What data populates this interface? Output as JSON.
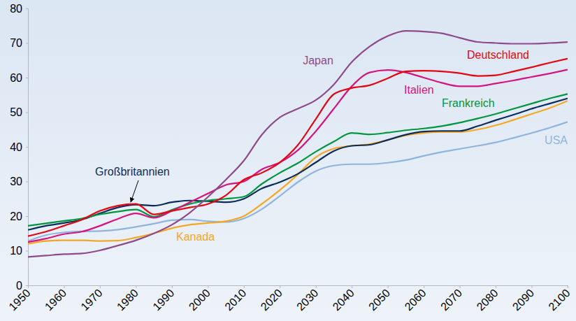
{
  "chart_data": {
    "type": "line",
    "x": [
      1950,
      1955,
      1960,
      1965,
      1970,
      1975,
      1980,
      1985,
      1990,
      1995,
      2000,
      2005,
      2010,
      2015,
      2020,
      2025,
      2030,
      2035,
      2040,
      2045,
      2050,
      2055,
      2060,
      2065,
      2070,
      2075,
      2080,
      2085,
      2090,
      2095,
      2100
    ],
    "xlim": [
      1950,
      2100
    ],
    "xticks": [
      1950,
      1960,
      1970,
      1980,
      1990,
      2000,
      2010,
      2020,
      2030,
      2040,
      2050,
      2060,
      2070,
      2080,
      2090,
      2100
    ],
    "ylim": [
      0,
      80
    ],
    "yticks": [
      0,
      10,
      20,
      30,
      40,
      50,
      60,
      70,
      80
    ],
    "grid": false,
    "series": [
      {
        "name": "Japan",
        "color": "#8e4a8a",
        "values": [
          8.2,
          8.6,
          9.0,
          9.2,
          10.1,
          11.5,
          13.0,
          15.0,
          17.5,
          21.0,
          25.5,
          30.5,
          36.0,
          43.5,
          48.5,
          51.0,
          53.5,
          58.0,
          64.5,
          69.0,
          72.0,
          73.5,
          73.3,
          72.8,
          71.5,
          70.3,
          70.0,
          69.8,
          69.8,
          70.0,
          70.3
        ]
      },
      {
        "name": "Deutschland",
        "color": "#e30613",
        "values": [
          14.2,
          15.5,
          17.2,
          19.0,
          21.5,
          23.0,
          23.5,
          20.5,
          21.5,
          22.5,
          23.5,
          26.0,
          30.5,
          32.5,
          35.5,
          40.5,
          48.0,
          55.2,
          57.0,
          57.8,
          59.8,
          61.8,
          62.0,
          61.8,
          61.3,
          60.5,
          60.7,
          61.8,
          63.0,
          64.3,
          65.5
        ]
      },
      {
        "name": "Italien",
        "color": "#d4147f",
        "values": [
          12.5,
          13.5,
          14.8,
          15.5,
          17.2,
          19.2,
          20.8,
          19.5,
          21.5,
          24.0,
          26.5,
          29.0,
          30.0,
          33.5,
          35.5,
          39.0,
          44.5,
          51.0,
          57.5,
          61.5,
          62.2,
          61.5,
          60.0,
          58.5,
          57.5,
          57.5,
          58.3,
          59.2,
          60.2,
          61.2,
          62.3
        ]
      },
      {
        "name": "Frankreich",
        "color": "#00963f",
        "values": [
          17.2,
          17.9,
          18.6,
          19.3,
          20.5,
          21.3,
          21.9,
          19.8,
          21.8,
          23.5,
          24.5,
          25.0,
          25.6,
          29.3,
          32.5,
          35.3,
          38.6,
          41.5,
          44.0,
          43.6,
          44.1,
          44.8,
          45.3,
          46.0,
          47.0,
          48.2,
          49.5,
          51.0,
          52.5,
          54.0,
          55.3
        ]
      },
      {
        "name": "Großbritannien",
        "color": "#0c2c5a",
        "values": [
          16.0,
          17.2,
          18.0,
          19.0,
          20.8,
          22.5,
          23.3,
          23.0,
          24.0,
          24.5,
          24.3,
          24.0,
          25.0,
          28.0,
          29.8,
          32.2,
          35.5,
          38.8,
          40.3,
          40.6,
          42.0,
          43.5,
          44.4,
          44.6,
          44.6,
          46.0,
          47.7,
          49.3,
          51.0,
          52.5,
          54.0
        ]
      },
      {
        "name": "Kanada",
        "color": "#f5a623",
        "values": [
          12.0,
          12.8,
          13.0,
          13.0,
          12.8,
          12.9,
          13.8,
          15.0,
          16.5,
          17.5,
          18.0,
          18.5,
          20.0,
          23.5,
          27.5,
          32.0,
          37.0,
          39.5,
          40.3,
          40.8,
          42.0,
          43.3,
          44.0,
          44.3,
          44.3,
          45.0,
          46.2,
          47.8,
          49.5,
          51.2,
          53.3
        ]
      },
      {
        "name": "USA",
        "color": "#8fb4de",
        "values": [
          12.8,
          14.5,
          15.3,
          15.6,
          15.7,
          16.1,
          16.9,
          17.8,
          18.8,
          19.0,
          18.5,
          18.3,
          19.3,
          22.0,
          25.8,
          29.8,
          33.0,
          34.6,
          35.0,
          35.0,
          35.4,
          36.2,
          37.4,
          38.5,
          39.4,
          40.3,
          41.3,
          42.6,
          44.0,
          45.5,
          47.2
        ]
      }
    ]
  }
}
